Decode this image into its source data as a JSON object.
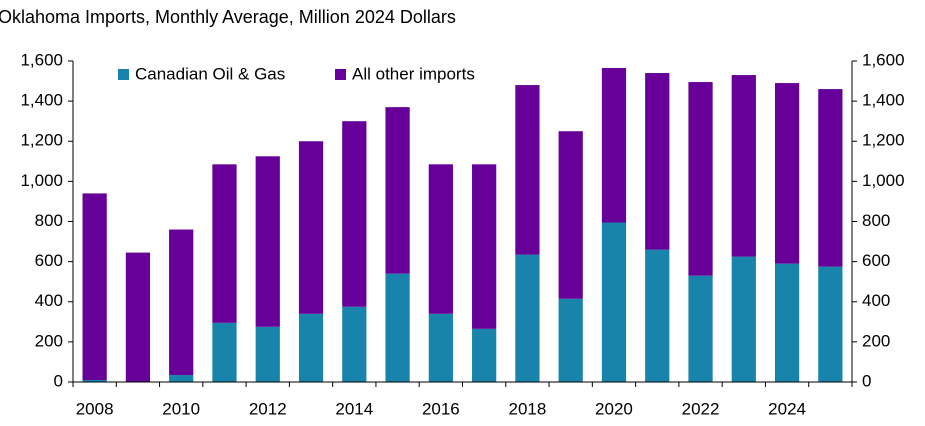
{
  "chart_data": {
    "type": "stacked_bar",
    "title": "Oklahoma Imports, Monthly Average, Million 2024 Dollars",
    "categories": [
      "2008",
      null,
      "2010",
      null,
      "2012",
      null,
      "2014",
      null,
      "2016",
      null,
      "2018",
      null,
      "2020",
      null,
      "2022",
      null,
      "2024",
      null
    ],
    "series": [
      {
        "name": "Canadian Oil & Gas",
        "color": "#1984ab",
        "values": [
          10,
          2,
          35,
          295,
          275,
          340,
          375,
          540,
          340,
          265,
          635,
          415,
          795,
          660,
          530,
          625,
          590,
          575
        ]
      },
      {
        "name": "All other imports",
        "color": "#660099",
        "values": [
          930,
          643,
          725,
          790,
          850,
          860,
          925,
          830,
          745,
          820,
          845,
          835,
          770,
          880,
          965,
          905,
          900,
          885
        ]
      }
    ],
    "ylim": [
      0,
      1600
    ],
    "yticks": [
      0,
      200,
      400,
      600,
      800,
      {
        "value": 1000,
        "label": "1,000"
      },
      {
        "value": 1200,
        "label": "1,200"
      },
      {
        "value": 1400,
        "label": "1,400"
      },
      {
        "value": 1600,
        "label": "1,600"
      }
    ],
    "y2lim": [
      0,
      1600
    ],
    "y2ticks": [
      0,
      200,
      400,
      600,
      800,
      {
        "value": 1000,
        "label": "1,000"
      },
      {
        "value": 1200,
        "label": "1,200"
      },
      {
        "value": 1400,
        "label": "1,400"
      },
      {
        "value": 1600,
        "label": "1,600"
      }
    ],
    "legend": "top-left"
  }
}
